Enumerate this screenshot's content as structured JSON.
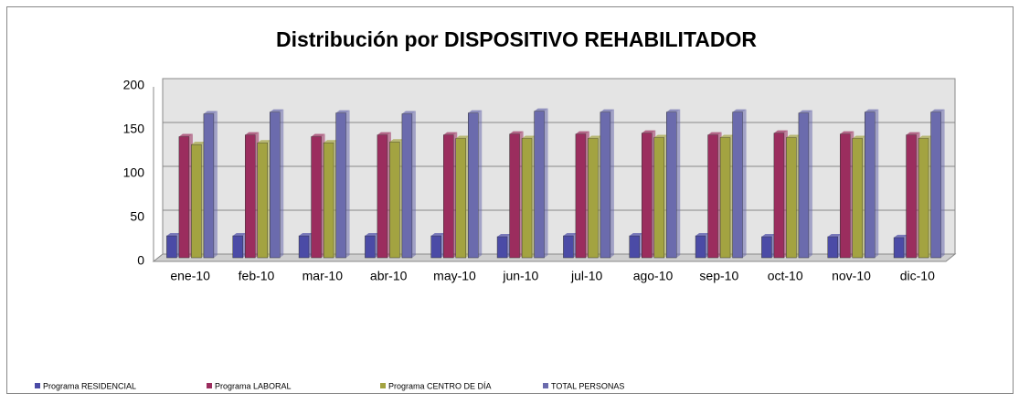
{
  "chart_data": {
    "type": "bar",
    "title": "Distribución por DISPOSITIVO REHABILITADOR",
    "categories": [
      "ene-10",
      "feb-10",
      "mar-10",
      "abr-10",
      "may-10",
      "jun-10",
      "jul-10",
      "ago-10",
      "sep-10",
      "oct-10",
      "nov-10",
      "dic-10"
    ],
    "series": [
      {
        "name": "Programa RESIDENCIAL",
        "color": "#4b4ba6",
        "values": [
          25,
          25,
          25,
          25,
          25,
          24,
          25,
          25,
          25,
          24,
          24,
          23
        ]
      },
      {
        "name": "Programa LABORAL",
        "color": "#9b2d5e",
        "values": [
          138,
          140,
          138,
          140,
          140,
          141,
          141,
          142,
          140,
          142,
          141,
          140
        ]
      },
      {
        "name": "Programa CENTRO DE DÍA",
        "color": "#a3a341",
        "values": [
          129,
          131,
          131,
          132,
          136,
          136,
          136,
          137,
          137,
          137,
          136,
          136
        ]
      },
      {
        "name": "TOTAL PERSONAS",
        "color": "#6b6bad",
        "values": [
          164,
          166,
          165,
          164,
          165,
          167,
          166,
          166,
          166,
          165,
          166,
          166
        ]
      }
    ],
    "ylim": [
      0,
      200
    ],
    "yticks": [
      0,
      50,
      100,
      150,
      200
    ],
    "grid": true,
    "legend": "bottom"
  }
}
